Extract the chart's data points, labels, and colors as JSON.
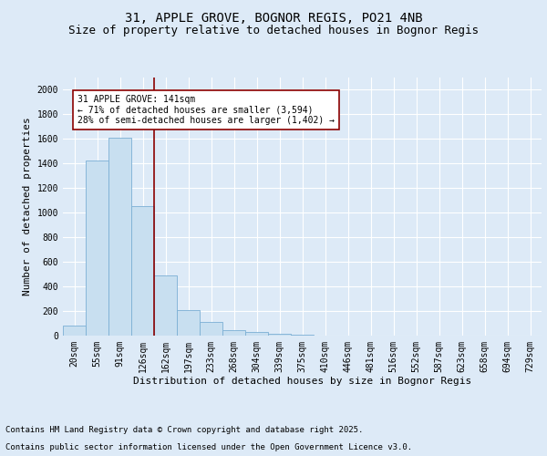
{
  "title_line1": "31, APPLE GROVE, BOGNOR REGIS, PO21 4NB",
  "title_line2": "Size of property relative to detached houses in Bognor Regis",
  "xlabel": "Distribution of detached houses by size in Bognor Regis",
  "ylabel": "Number of detached properties",
  "categories": [
    "20sqm",
    "55sqm",
    "91sqm",
    "126sqm",
    "162sqm",
    "197sqm",
    "233sqm",
    "268sqm",
    "304sqm",
    "339sqm",
    "375sqm",
    "410sqm",
    "446sqm",
    "481sqm",
    "516sqm",
    "552sqm",
    "587sqm",
    "623sqm",
    "658sqm",
    "694sqm",
    "729sqm"
  ],
  "values": [
    80,
    1420,
    1610,
    1050,
    490,
    205,
    110,
    40,
    25,
    10,
    5,
    0,
    0,
    0,
    0,
    0,
    0,
    0,
    0,
    0,
    0
  ],
  "bar_color": "#c8dff0",
  "bar_edge_color": "#7bafd4",
  "vline_color": "#8b0000",
  "annotation_text": "31 APPLE GROVE: 141sqm\n← 71% of detached houses are smaller (3,594)\n28% of semi-detached houses are larger (1,402) →",
  "annotation_box_color": "#ffffff",
  "annotation_box_edge": "#8b0000",
  "ylim": [
    0,
    2100
  ],
  "yticks": [
    0,
    200,
    400,
    600,
    800,
    1000,
    1200,
    1400,
    1600,
    1800,
    2000
  ],
  "footer_line1": "Contains HM Land Registry data © Crown copyright and database right 2025.",
  "footer_line2": "Contains public sector information licensed under the Open Government Licence v3.0.",
  "bg_color": "#ddeaf7",
  "plot_bg_color": "#ddeaf7",
  "title_fontsize": 10,
  "subtitle_fontsize": 9,
  "axis_fontsize": 7,
  "ylabel_fontsize": 8,
  "xlabel_fontsize": 8,
  "footer_fontsize": 6.5,
  "annotation_fontsize": 7
}
